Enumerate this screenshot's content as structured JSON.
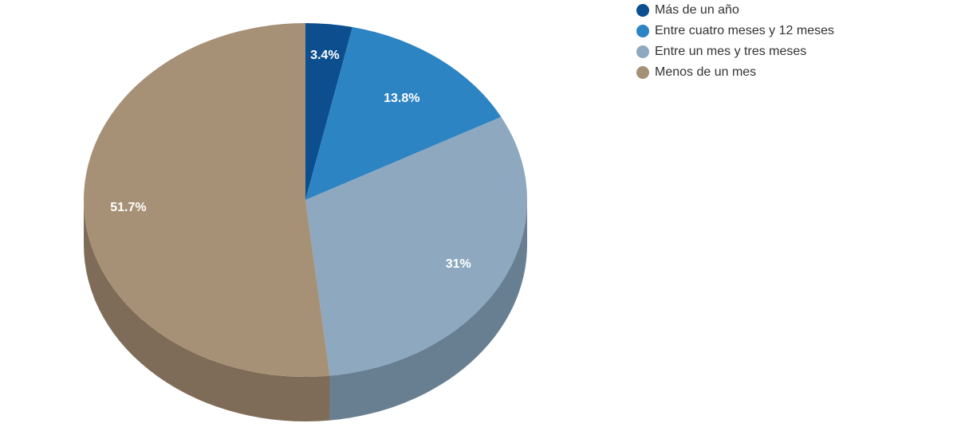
{
  "chart_data": {
    "type": "pie",
    "style": "3d",
    "title": "",
    "legend_position": "top-right",
    "slices": [
      {
        "name": "Más de un año",
        "value": 3.4,
        "label": "3.4%",
        "color": "#0d4e8f",
        "side_color": "#0a3a6b"
      },
      {
        "name": "Entre cuatro meses y 12 meses",
        "value": 13.8,
        "label": "13.8%",
        "color": "#2d84c3",
        "side_color": "#22638f"
      },
      {
        "name": "Entre un mes y tres meses",
        "value": 31,
        "label": "31%",
        "color": "#8da8bf",
        "side_color": "#687f91"
      },
      {
        "name": "Menos de un mes",
        "value": 51.7,
        "label": "51.7%",
        "color": "#a79176",
        "side_color": "#7f6c58"
      }
    ]
  }
}
